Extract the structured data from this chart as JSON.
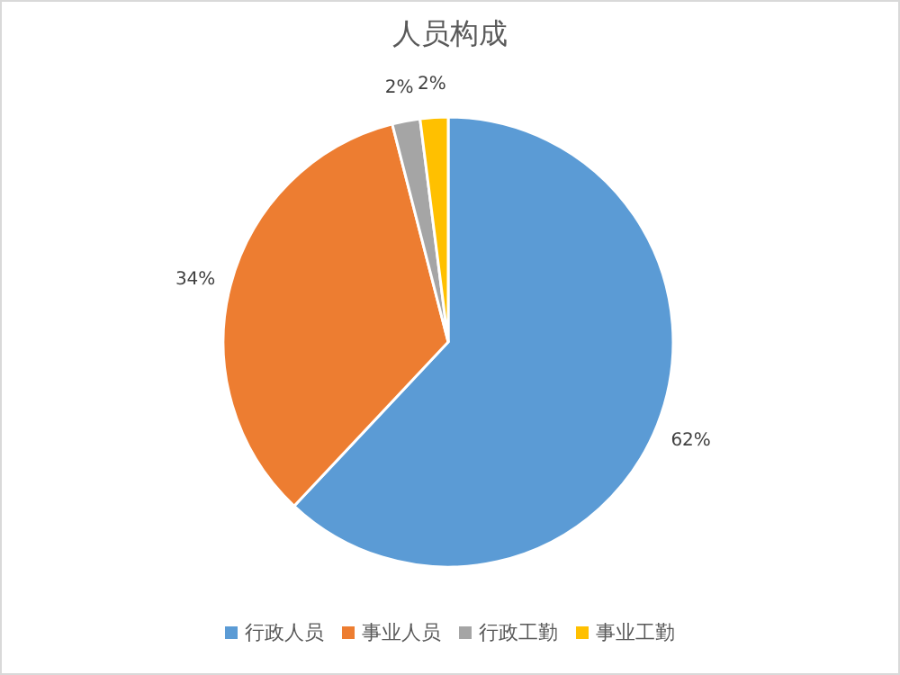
{
  "chart_data": {
    "type": "pie",
    "title": "人员构成",
    "categories": [
      "行政人员",
      "事业人员",
      "行政工勤",
      "事业工勤"
    ],
    "values": [
      62,
      34,
      2,
      2
    ],
    "colors": [
      "#5b9bd5",
      "#ed7d31",
      "#a5a5a5",
      "#ffc000"
    ],
    "value_labels": [
      "62%",
      "34%",
      "2%",
      "2%"
    ],
    "legend": "bottom"
  }
}
